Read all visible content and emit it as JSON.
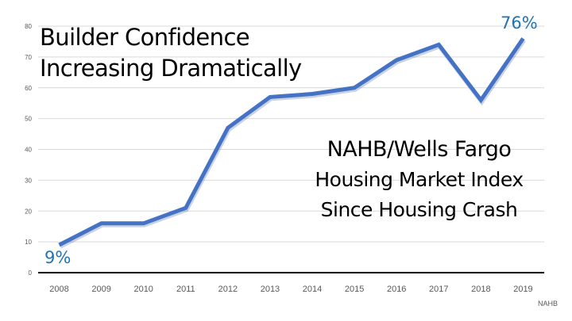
{
  "chart_data": {
    "type": "line",
    "title": "Builder Confidence Increasing Dramatically",
    "title_lines": [
      "Builder Confidence",
      "Increasing Dramatically"
    ],
    "subtitle_lines": [
      "NAHB/Wells Fargo",
      "Housing Market Index",
      "Since Housing Crash"
    ],
    "categories": [
      "2008",
      "2009",
      "2010",
      "2011",
      "2012",
      "2013",
      "2014",
      "2015",
      "2016",
      "2017",
      "2018",
      "2019"
    ],
    "series": [
      {
        "name": "Housing Market Index",
        "values": [
          9,
          16,
          16,
          21,
          47,
          57,
          58,
          60,
          69,
          74,
          56,
          76
        ],
        "color": "#4472c4"
      }
    ],
    "yticks": [
      0,
      10,
      20,
      30,
      40,
      50,
      60,
      70,
      80
    ],
    "ylim": [
      0,
      80
    ],
    "grid": true,
    "annotations": {
      "start": "9%",
      "end": "76%"
    },
    "source": "NAHB",
    "xlabel": "",
    "ylabel": ""
  }
}
